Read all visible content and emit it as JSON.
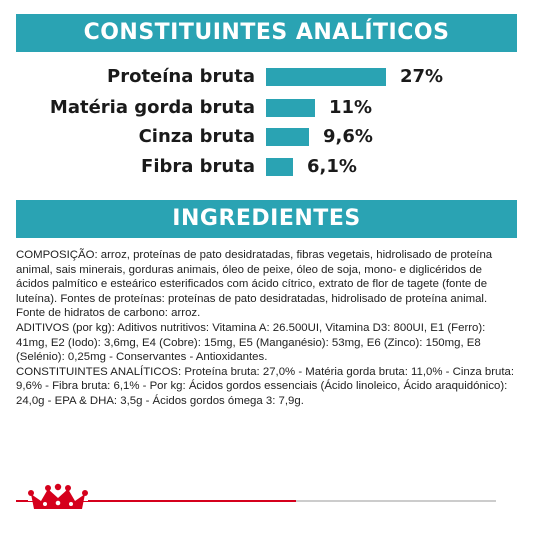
{
  "analytic": {
    "heading": "CONSTITUINTES ANALÍTICOS",
    "rows": [
      {
        "label": "Proteína bruta",
        "value": "27%",
        "pct": 27.0
      },
      {
        "label": "Matéria gorda bruta",
        "value": "11%",
        "pct": 11.0
      },
      {
        "label": "Cinza bruta",
        "value": "9,6%",
        "pct": 9.6
      },
      {
        "label": "Fibra bruta",
        "value": "6,1%",
        "pct": 6.1
      }
    ]
  },
  "ingredients": {
    "heading": "INGREDIENTES",
    "composition": "COMPOSIÇÃO: arroz, proteínas de pato desidratadas, fibras vegetais, hidrolisado de proteína animal, sais minerais, gorduras animais, óleo de peixe, óleo de soja, mono- e diglicéridos de ácidos palmítico e esteárico esterificados com ácido cítrico, extrato de flor de tagete (fonte de luteína). Fontes de proteínas: proteínas de pato desidratadas, hidrolisado de proteína animal. Fonte de hidratos de carbono: arroz.",
    "additives": " ADITIVOS (por kg): Aditivos nutritivos: Vitamina A: 26.500UI, Vitamina D3: 800UI, E1 (Ferro): 41mg, E2 (Iodo): 3,6mg, E4 (Cobre): 15mg, E5 (Manganésio): 53mg, E6 (Zinco): 150mg, E8 (Selénio): 0,25mg - Conservantes - Antioxidantes.",
    "constituents": " CONSTITUINTES ANALÍTICOS: Proteína bruta: 27,0% - Matéria gorda bruta: 11,0% - Cinza bruta: 9,6% - Fibra bruta: 6,1% - Por kg: Ácidos gordos essenciais (Ácido linoleico, Ácido araquidónico): 24,0g - EPA & DHA: 3,5g - Ácidos gordos ómega 3: 7,9g."
  },
  "brand": {
    "logo_icon": "royal-canin-crown-icon",
    "accent": "#2aa3b3",
    "red": "#d5001c"
  }
}
